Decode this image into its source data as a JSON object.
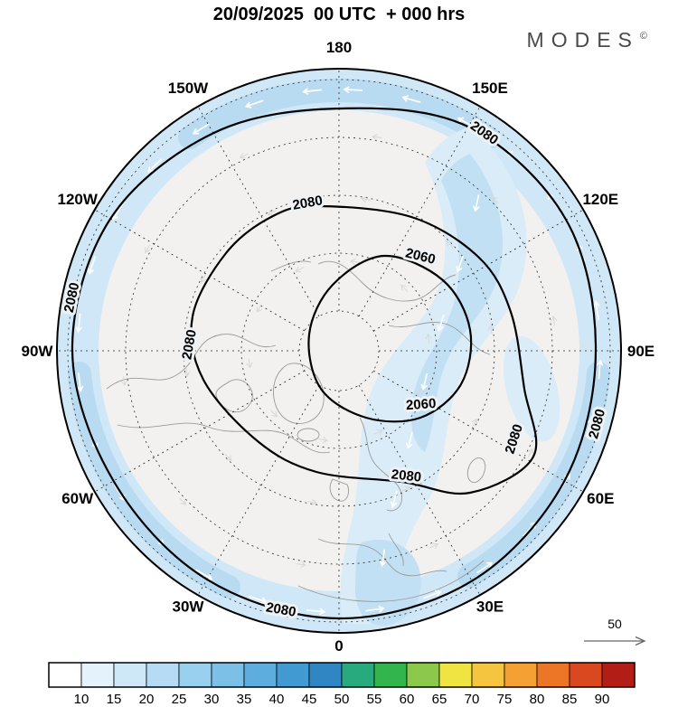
{
  "header": {
    "title": "20/09/2025  00 UTC  + 000 hrs",
    "brand": "MODES",
    "brand_mark": "©"
  },
  "map": {
    "longitude_labels": [
      {
        "label": "180",
        "angle": 0
      },
      {
        "label": "150E",
        "angle": 30
      },
      {
        "label": "120E",
        "angle": 60
      },
      {
        "label": "90E",
        "angle": 90
      },
      {
        "label": "60E",
        "angle": 120
      },
      {
        "label": "30E",
        "angle": 150
      },
      {
        "label": "0",
        "angle": 180
      },
      {
        "label": "30W",
        "angle": 210
      },
      {
        "label": "60W",
        "angle": 240
      },
      {
        "label": "90W",
        "angle": 270
      },
      {
        "label": "120W",
        "angle": 300
      },
      {
        "label": "150W",
        "angle": 330
      }
    ],
    "contours": {
      "outer_label": "2080",
      "middle_label": "2080",
      "low_label": "2060"
    },
    "colors": {
      "background": "#f2f1ef",
      "band": "#cfe7f6",
      "band_deep": "#b9dbf2",
      "swath": "#d9ecf8",
      "swath_deep": "#c2e0f4",
      "land_line": "#9a9a9a",
      "contour": "#000000",
      "arrow": "#ffffff"
    }
  },
  "wind_scale": {
    "label": "50"
  },
  "colorbar": {
    "ticks": [
      "10",
      "15",
      "20",
      "25",
      "30",
      "35",
      "40",
      "45",
      "50",
      "55",
      "60",
      "65",
      "70",
      "75",
      "80",
      "85",
      "90"
    ],
    "colors": [
      "#ffffff",
      "#e3f2fb",
      "#cfe8f7",
      "#b5dcf4",
      "#9ad0ef",
      "#7cc0e8",
      "#5daede",
      "#429ad3",
      "#2f86c3",
      "#28a97e",
      "#33b54e",
      "#8bc84b",
      "#f0e443",
      "#f6c53f",
      "#f4a033",
      "#ec7526",
      "#d9481e",
      "#b21d15"
    ]
  },
  "chart_data": {
    "type": "heatmap",
    "title": "20/09/2025 00 UTC + 000 hrs",
    "map_projection": "north polar stereographic",
    "contour_levels": [
      2060,
      2080
    ],
    "contours": [
      {
        "level": 2080,
        "shape": "outer ring near the map rim, labelled four times around the circle"
      },
      {
        "level": 2080,
        "shape": "inner wavy closed loop around the pole, labelled four times"
      },
      {
        "level": 2060,
        "shape": "closed loop centred east of the pole, labelled twice"
      }
    ],
    "longitude_ticks": [
      "180",
      "150E",
      "120E",
      "90E",
      "60E",
      "30E",
      "0",
      "30W",
      "60W",
      "90W",
      "120W",
      "150W"
    ],
    "colorbar_ticks": [
      10,
      15,
      20,
      25,
      30,
      35,
      40,
      45,
      50,
      55,
      60,
      65,
      70,
      75,
      80,
      85,
      90
    ],
    "colorbar_colors": [
      "#ffffff",
      "#e3f2fb",
      "#cfe8f7",
      "#b5dcf4",
      "#9ad0ef",
      "#7cc0e8",
      "#5daede",
      "#429ad3",
      "#2f86c3",
      "#28a97e",
      "#33b54e",
      "#8bc84b",
      "#f0e443",
      "#f6c53f",
      "#f4a033",
      "#ec7526",
      "#d9481e",
      "#b21d15"
    ],
    "wind_reference_value": 50,
    "shaded_field": "light blue shading (approx. 10-25 range) along the outer latitude band and in a swath crossing the pole from about 120E toward 0E",
    "legend_position": "bottom",
    "grid": "dashed polar graticule, meridians every 30 degrees"
  }
}
